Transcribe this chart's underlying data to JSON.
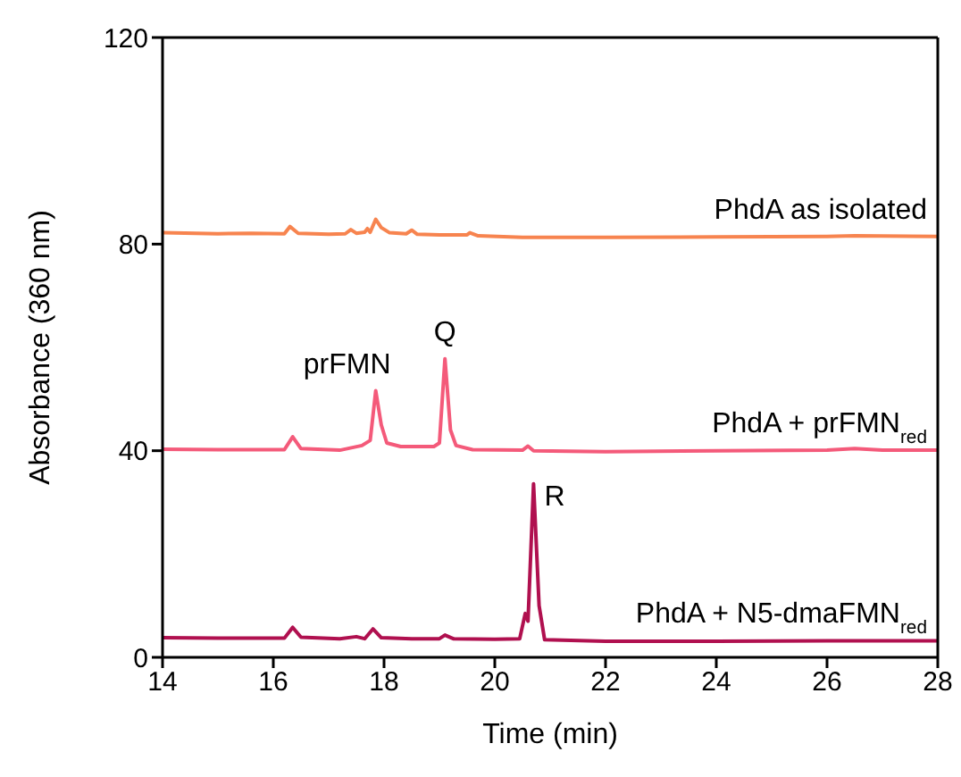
{
  "chart_data": {
    "type": "line",
    "xlabel": "Time (min)",
    "ylabel": "Absorbance (360 nm)",
    "xlim": [
      14,
      28
    ],
    "xticks": [
      14,
      16,
      18,
      20,
      22,
      24,
      26,
      28
    ],
    "ylim": [
      0,
      120
    ],
    "yticks": [
      0,
      40,
      80,
      120
    ],
    "marker": "none",
    "line_style": "solid",
    "series": [
      {
        "name": "PhdA as isolated",
        "color": "#f7844f",
        "x": [
          14,
          15,
          15.6,
          16.2,
          16.3,
          16.45,
          17,
          17.3,
          17.4,
          17.5,
          17.65,
          17.7,
          17.75,
          17.85,
          17.95,
          18.1,
          18.4,
          18.5,
          18.6,
          19,
          19.5,
          19.55,
          19.7,
          20.5,
          22,
          24,
          26,
          26.5,
          28
        ],
        "values": [
          82.2,
          82.0,
          82.1,
          82.0,
          83.4,
          82.1,
          81.9,
          82.0,
          82.8,
          82.1,
          82.3,
          83.0,
          82.3,
          84.8,
          83.2,
          82.2,
          82.0,
          82.7,
          81.9,
          81.8,
          81.8,
          82.2,
          81.6,
          81.3,
          81.3,
          81.4,
          81.5,
          81.6,
          81.5
        ]
      },
      {
        "name": "PhdA + prFMN$_{red}$",
        "color": "#f45a7a",
        "x": [
          14,
          15,
          16.2,
          16.35,
          16.5,
          17.2,
          17.6,
          17.75,
          17.85,
          17.95,
          18.05,
          18.3,
          18.9,
          19,
          19.1,
          19.2,
          19.3,
          19.6,
          20.5,
          20.6,
          20.7,
          22,
          24,
          26,
          26.5,
          27,
          28
        ],
        "values": [
          40.3,
          40.2,
          40.2,
          42.7,
          40.4,
          40.1,
          41.0,
          42.0,
          51.6,
          45,
          41.5,
          40.8,
          40.8,
          41.5,
          57.8,
          44,
          41.0,
          40.2,
          40.1,
          40.9,
          40.0,
          39.8,
          40.0,
          40.1,
          40.4,
          40.1,
          40.1
        ]
      },
      {
        "name": "PhdA + N5-dmaFMN$_{red}$",
        "color": "#b0104f",
        "x": [
          14,
          15,
          16.2,
          16.35,
          16.5,
          17.2,
          17.5,
          17.65,
          17.8,
          17.95,
          18.5,
          19,
          19.1,
          19.25,
          20,
          20.45,
          20.55,
          20.6,
          20.7,
          20.8,
          20.9,
          22,
          24,
          26,
          28
        ],
        "values": [
          3.8,
          3.7,
          3.7,
          5.8,
          3.9,
          3.6,
          4.0,
          3.6,
          5.5,
          3.8,
          3.6,
          3.6,
          4.3,
          3.6,
          3.5,
          3.6,
          8.5,
          7.0,
          33.6,
          10,
          3.4,
          3.1,
          3.1,
          3.2,
          3.2
        ]
      }
    ],
    "annotations": [
      {
        "text": "prFMN",
        "x": 17.85,
        "y": 51.6
      },
      {
        "text": "Q",
        "x": 19.1,
        "y": 57.8
      },
      {
        "text": "R",
        "x": 20.7,
        "y": 33.6
      }
    ]
  }
}
